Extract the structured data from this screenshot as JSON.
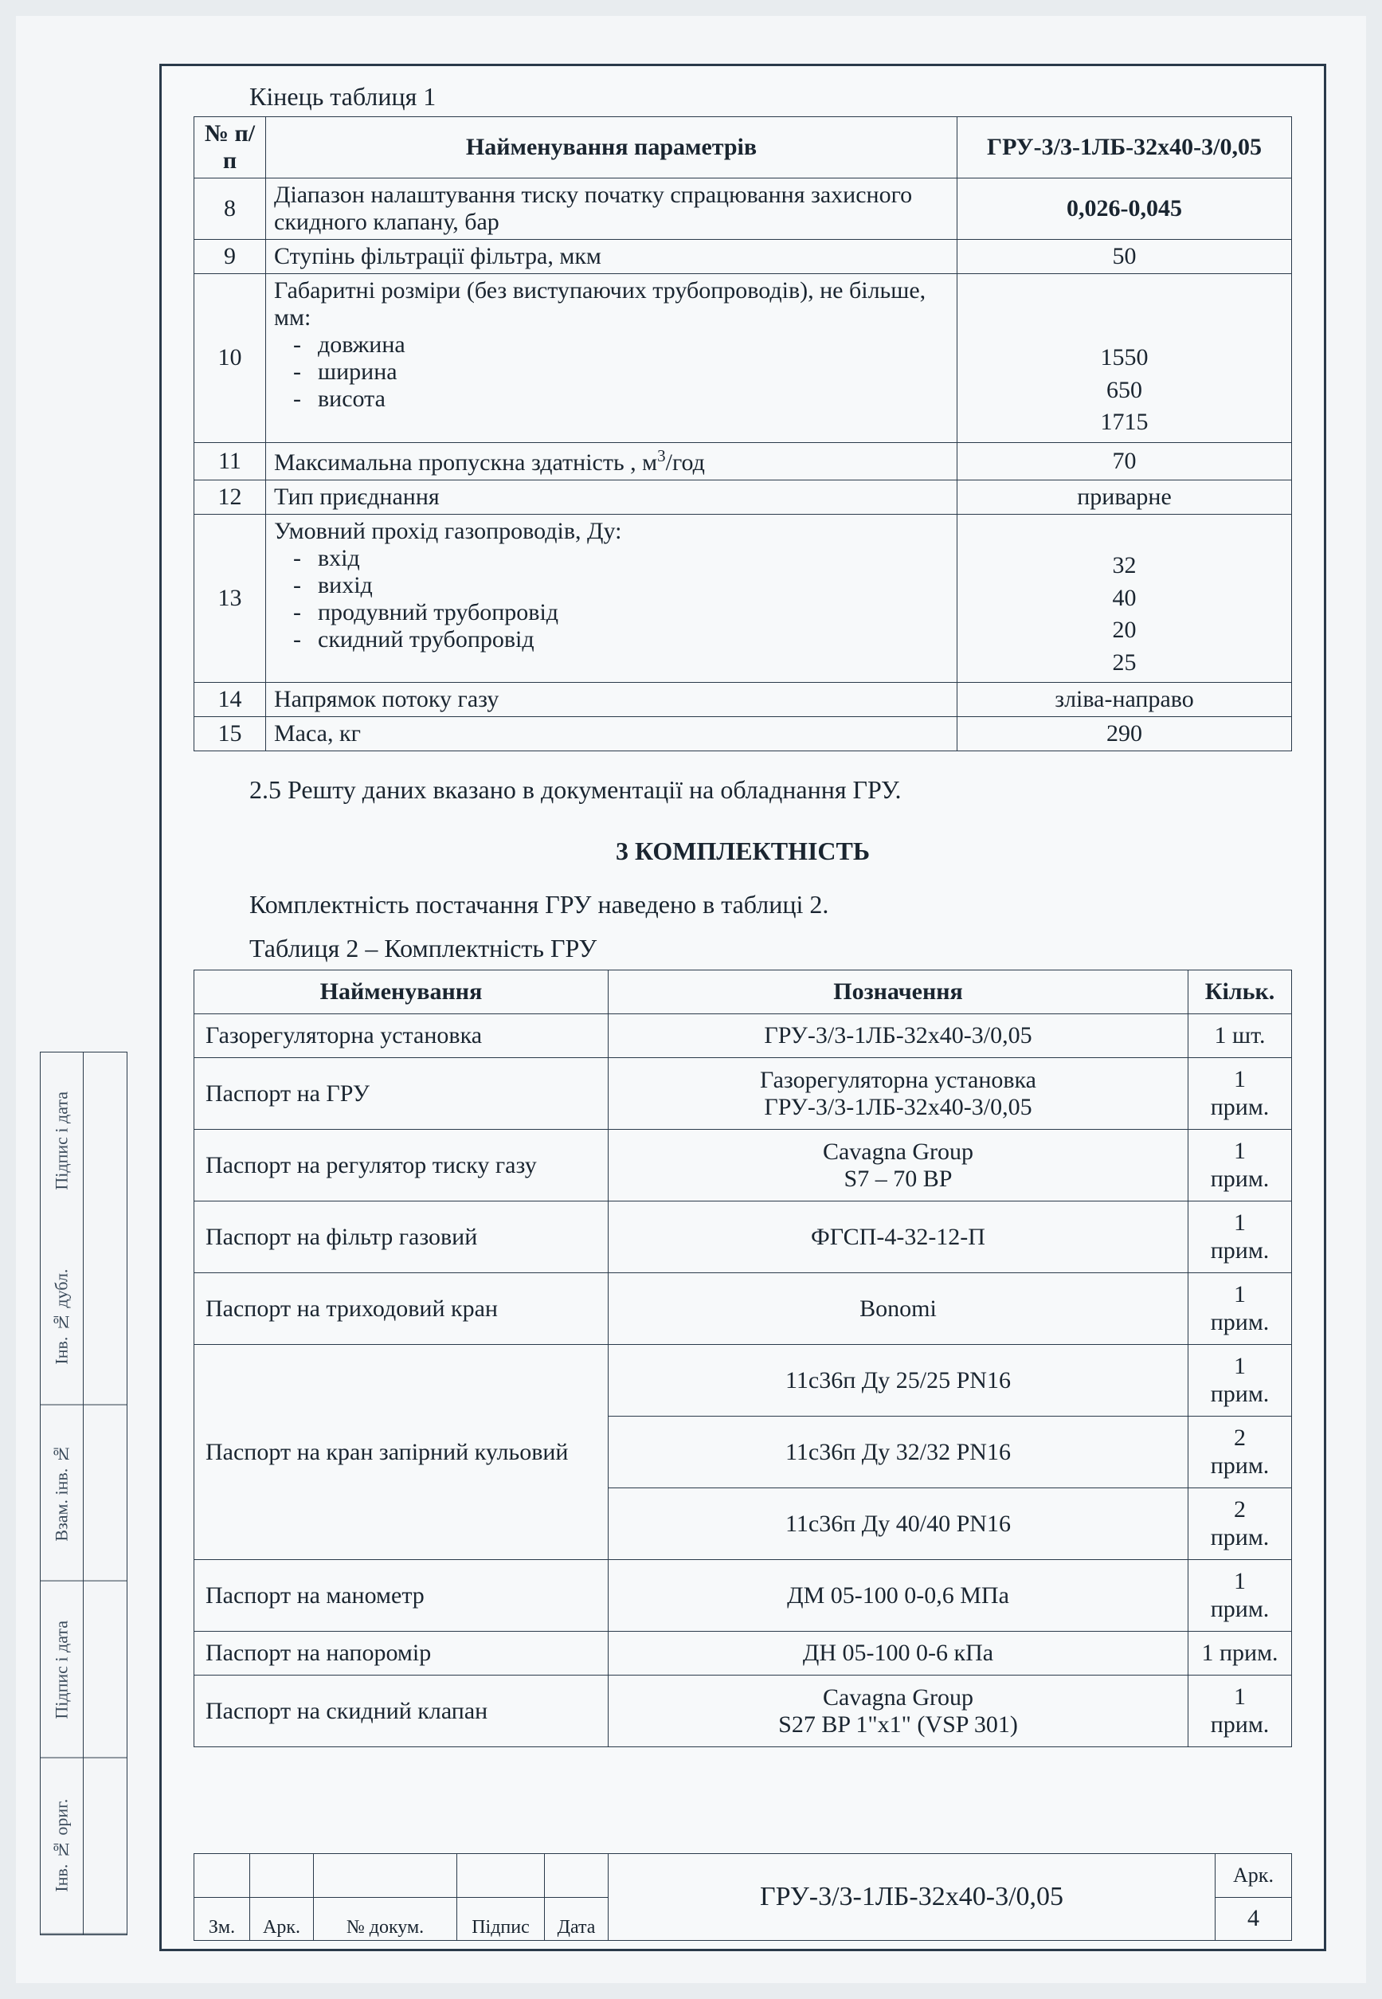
{
  "table1_end_title": "Кінець таблиця 1",
  "t1": {
    "headers": {
      "num": "№ п/п",
      "param": "Найменування параметрів",
      "value": "ГРУ-3/3-1ЛБ-32х40-3/0,05"
    },
    "rows": [
      {
        "n": "8",
        "param": "Діапазон налаштування тиску початку спрацювання захисного скидного клапану, бар",
        "value": "0,026-0,045",
        "bold": true
      },
      {
        "n": "9",
        "param": "Ступінь фільтрації фільтра, мкм",
        "value": "50"
      },
      {
        "n": "10",
        "param_lines": [
          "Габаритні розміри (без виступаючих трубопроводів), не більше, мм:",
          "- довжина",
          "- ширина",
          "- висота"
        ],
        "value_lines": [
          "",
          "",
          "1550",
          "650",
          "1715"
        ]
      },
      {
        "n": "11",
        "param_html": "Максимальна пропускна здатність , м³/год",
        "value": "70"
      },
      {
        "n": "12",
        "param": "Тип приєднання",
        "value": "приварне"
      },
      {
        "n": "13",
        "param_lines": [
          "Умовний прохід газопроводів, Ду:",
          "- вхід",
          "- вихід",
          "- продувний трубопровід",
          "- скидний трубопровід"
        ],
        "value_lines": [
          "",
          "32",
          "40",
          "20",
          "25"
        ]
      },
      {
        "n": "14",
        "param": "Напрямок потоку газу",
        "value": "зліва-направо"
      },
      {
        "n": "15",
        "param": "Маса, кг",
        "value": "290"
      }
    ]
  },
  "note_2_5": "2.5 Решту даних вказано в документації на обладнання ГРУ.",
  "section3_title": "3 КОМПЛЕКТНІСТЬ",
  "section3_intro": "Комплектність постачання ГРУ наведено в таблиці 2.",
  "table2_title": "Таблиця 2 – Комплектність ГРУ",
  "t2": {
    "headers": {
      "name": "Найменування",
      "des": "Позначення",
      "qty": "Кільк."
    },
    "rows": [
      {
        "name": "Газорегуляторна установка",
        "des": "ГРУ-3/3-1ЛБ-32х40-3/0,05",
        "qty": "1 шт."
      },
      {
        "name": "Паспорт на ГРУ",
        "des_lines": [
          "Газорегуляторна установка",
          "ГРУ-3/3-1ЛБ-32х40-3/0,05"
        ],
        "qty_lines": [
          "1",
          "прим."
        ]
      },
      {
        "name": "Паспорт на регулятор тиску газу",
        "des_lines": [
          "Cavagna Group",
          "S7 – 70 BP"
        ],
        "qty_lines": [
          "1",
          "прим."
        ]
      },
      {
        "name": "Паспорт на фільтр газовий",
        "des": "ФГСП-4-32-12-П",
        "qty_lines": [
          "1",
          "прим."
        ]
      },
      {
        "name": "Паспорт на триходовий кран",
        "des": "Bonomi",
        "qty_lines": [
          "1",
          "прим."
        ]
      },
      {
        "name": "Паспорт на кран запірний кульовий",
        "rowspan": 3,
        "des": "11с36п Ду 25/25 PN16",
        "qty_lines": [
          "1",
          "прим."
        ]
      },
      {
        "name": null,
        "des": "11с36п Ду 32/32 PN16",
        "qty_lines": [
          "2",
          "прим."
        ]
      },
      {
        "name": null,
        "des": "11с36п Ду 40/40 PN16",
        "qty_lines": [
          "2",
          "прим."
        ]
      },
      {
        "name": "Паспорт на манометр",
        "des": "ДМ 05-100   0-0,6 МПа",
        "qty_lines": [
          "1",
          "прим."
        ]
      },
      {
        "name": "Паспорт на напоромір",
        "des": "ДН 05-100   0-6 кПа",
        "qty": "1 прим."
      },
      {
        "name": "Паспорт на скидний клапан",
        "des_lines": [
          "Cavagna Group",
          "S27 BP 1\"x1\" (VSP 301)"
        ],
        "qty_lines": [
          "1",
          "прим."
        ]
      }
    ]
  },
  "titleblock": {
    "doc": "ГРУ-3/3-1ЛБ-32х40-3/0,05",
    "sheet_label": "Арк.",
    "sheet_num": "4",
    "cells": [
      "Зм.",
      "Арк.",
      "№ докум.",
      "Підпис",
      "Дата"
    ]
  },
  "side_labels": [
    "Підпис і дата",
    "Інв. № дубл.",
    "Взам. інв. №",
    "Підпис і дата",
    "Інв. № ориг."
  ]
}
